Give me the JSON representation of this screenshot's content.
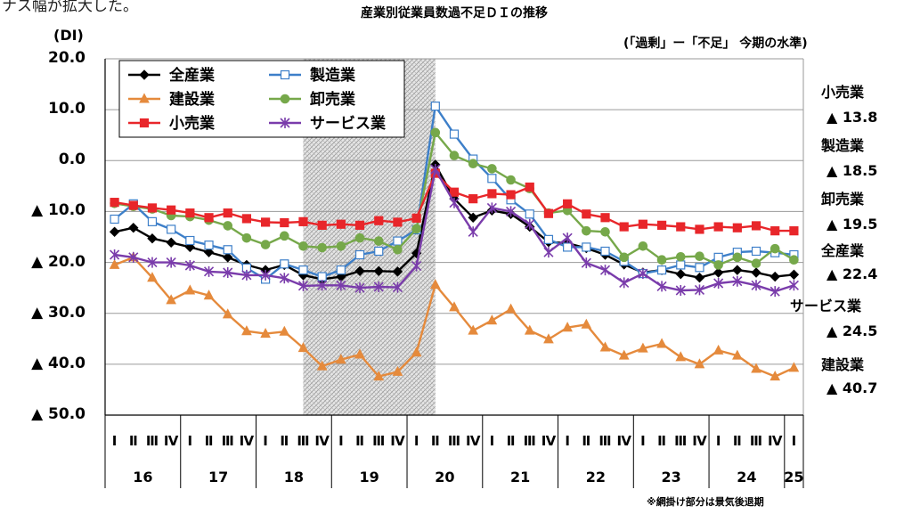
{
  "top_fragment": "ナス幅が拡大した。",
  "chart_data": {
    "type": "line",
    "title": "産業別従業員数過不足ＤＩの推移",
    "ylabel": "(DI)",
    "subtitle": "(「過剰」ー「不足」 今期の水準)",
    "footnote": "※網掛け部分は景気後退期",
    "ylim": [
      -50,
      20
    ],
    "y_ticks": [
      {
        "value": 20,
        "label": "20.0"
      },
      {
        "value": 10,
        "label": "10.0"
      },
      {
        "value": 0,
        "label": "0.0"
      },
      {
        "value": -10,
        "label": "▲ 10.0"
      },
      {
        "value": -20,
        "label": "▲ 20.0"
      },
      {
        "value": -30,
        "label": "▲ 30.0"
      },
      {
        "value": -40,
        "label": "▲ 40.0"
      },
      {
        "value": -50,
        "label": "▲ 50.0"
      }
    ],
    "quarter_labels": [
      "Ⅰ",
      "Ⅱ",
      "Ⅲ",
      "Ⅳ",
      "Ⅰ",
      "Ⅱ",
      "Ⅲ",
      "Ⅳ",
      "Ⅰ",
      "Ⅱ",
      "Ⅲ",
      "Ⅳ",
      "Ⅰ",
      "Ⅱ",
      "Ⅲ",
      "Ⅳ",
      "Ⅰ",
      "Ⅱ",
      "Ⅲ",
      "Ⅳ",
      "Ⅰ",
      "Ⅱ",
      "Ⅲ",
      "Ⅳ",
      "Ⅰ",
      "Ⅱ",
      "Ⅲ",
      "Ⅳ",
      "Ⅰ",
      "Ⅱ",
      "Ⅲ",
      "Ⅳ",
      "Ⅰ",
      "Ⅱ",
      "Ⅲ",
      "Ⅳ",
      "Ⅰ"
    ],
    "years": [
      {
        "label": "16",
        "start": 0,
        "end": 4
      },
      {
        "label": "17",
        "start": 4,
        "end": 8
      },
      {
        "label": "18",
        "start": 8,
        "end": 12
      },
      {
        "label": "19",
        "start": 12,
        "end": 16
      },
      {
        "label": "20",
        "start": 16,
        "end": 20
      },
      {
        "label": "21",
        "start": 20,
        "end": 24
      },
      {
        "label": "22",
        "start": 24,
        "end": 28
      },
      {
        "label": "23",
        "start": 28,
        "end": 32
      },
      {
        "label": "24",
        "start": 32,
        "end": 36
      },
      {
        "label": "25",
        "start": 36,
        "end": 37
      }
    ],
    "recession_band": {
      "start_index": 10.5,
      "end_index": 17.5
    },
    "series": [
      {
        "name": "全産業",
        "color": "#000000",
        "marker": "diamond",
        "filled": true,
        "values": [
          -14,
          -13.2,
          -15.3,
          -16.1,
          -17,
          -18,
          -19,
          -20.5,
          -21.5,
          -20.5,
          -22.5,
          -23.3,
          -22.8,
          -21.7,
          -21.7,
          -21.8,
          -18.2,
          -0.8,
          -7.5,
          -11.2,
          -9.8,
          -10.5,
          -13,
          -16,
          -16.2,
          -17.2,
          -18.5,
          -20.4,
          -22,
          -21.5,
          -22.3,
          -23,
          -22,
          -21.5,
          -22,
          -22.8,
          -22.4
        ]
      },
      {
        "name": "製造業",
        "color": "#3d7fc9",
        "marker": "square",
        "filled": false,
        "values": [
          -11.5,
          -8.5,
          -12,
          -13.5,
          -15.7,
          -16.6,
          -17.5,
          -21.1,
          -23.3,
          -20.3,
          -21.5,
          -22.8,
          -21.5,
          -18.5,
          -17.8,
          -15.8,
          -13.6,
          10.7,
          5.2,
          0.3,
          -3.5,
          -7.7,
          -10.5,
          -15.5,
          -17,
          -17,
          -17.8,
          -19.8,
          -22.2,
          -21.5,
          -20.5,
          -21,
          -19,
          -18,
          -17.8,
          -18.1,
          -18.5
        ]
      },
      {
        "name": "建設業",
        "color": "#e58a3c",
        "marker": "triangle",
        "filled": true,
        "values": [
          -20.5,
          -19,
          -23,
          -27.4,
          -25.5,
          -26.5,
          -30.2,
          -33.5,
          -34,
          -33.6,
          -36.8,
          -40.4,
          -39.1,
          -38.1,
          -42.4,
          -41.5,
          -37.7,
          -24.4,
          -28.8,
          -33.4,
          -31.4,
          -29.2,
          -33.4,
          -35.1,
          -32.8,
          -32.2,
          -36.7,
          -38.3,
          -36.9,
          -36,
          -38.6,
          -40,
          -37.3,
          -38.3,
          -40.9,
          -42.4,
          -40.7
        ]
      },
      {
        "name": "卸売業",
        "color": "#76a84a",
        "marker": "circle",
        "filled": true,
        "values": [
          -8.4,
          -9,
          -9.5,
          -10.8,
          -11,
          -11.7,
          -12.8,
          -15.2,
          -16.5,
          -14.8,
          -16.8,
          -17.1,
          -16.8,
          -15.2,
          -15.8,
          -17.5,
          -13.4,
          5.5,
          1,
          -0.6,
          -1.6,
          -3.8,
          -5.5,
          -10.3,
          -9.8,
          -13.8,
          -14,
          -19,
          -16.8,
          -19.5,
          -18.9,
          -18.8,
          -20.5,
          -19,
          -20.2,
          -17.3,
          -19.5
        ]
      },
      {
        "name": "小売業",
        "color": "#e8262a",
        "marker": "square",
        "filled": true,
        "values": [
          -8.2,
          -8.8,
          -9.3,
          -9.7,
          -10.3,
          -11.2,
          -10.3,
          -11.4,
          -12.1,
          -12.2,
          -12,
          -12.7,
          -12.5,
          -12.7,
          -11.8,
          -12.1,
          -11.3,
          -2.5,
          -6.2,
          -7.5,
          -6.5,
          -6.7,
          -5.2,
          -10.4,
          -8.5,
          -10.5,
          -11.2,
          -13,
          -12.5,
          -12.7,
          -13,
          -13.5,
          -13,
          -13.2,
          -12.8,
          -13.8,
          -13.8
        ]
      },
      {
        "name": "サービス業",
        "color": "#7a3cab",
        "marker": "star",
        "filled": false,
        "values": [
          -18.5,
          -19,
          -20,
          -20,
          -20.6,
          -21.8,
          -22,
          -22.5,
          -22.5,
          -23.1,
          -24.6,
          -24.5,
          -24.5,
          -25,
          -24.8,
          -24.9,
          -20.7,
          -1.7,
          -8.3,
          -14,
          -9.3,
          -10,
          -12.5,
          -18,
          -15.2,
          -20.1,
          -21.5,
          -24,
          -22.2,
          -24.7,
          -25.5,
          -25.4,
          -24.1,
          -23.7,
          -24.5,
          -25.7,
          -24.5
        ]
      }
    ],
    "annotations": [
      {
        "name": "小売業",
        "value": "▲ 13.8"
      },
      {
        "name": "製造業",
        "value": "▲ 18.5"
      },
      {
        "name": "卸売業",
        "value": "▲ 19.5"
      },
      {
        "name": "全産業",
        "value": "▲ 22.4"
      },
      {
        "name": "サービス業",
        "value": "▲ 24.5"
      },
      {
        "name": "建設業",
        "value": "▲ 40.7"
      }
    ]
  }
}
